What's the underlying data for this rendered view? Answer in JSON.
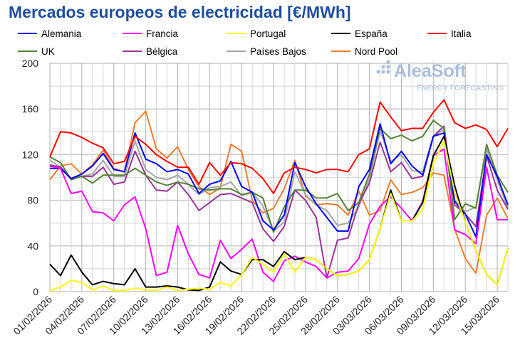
{
  "chart_data": {
    "type": "line",
    "title": "Mercados europeos de electricidad [€/MWh]",
    "xlabel": "",
    "ylabel": "",
    "ylim": [
      0,
      200
    ],
    "yticks": [
      0,
      40,
      80,
      120,
      160,
      200
    ],
    "grid": true,
    "legend": "top",
    "x_tick_labels": [
      "01/02/2026",
      "04/02/2026",
      "07/02/2026",
      "10/02/2026",
      "13/02/2026",
      "16/02/2026",
      "19/02/2026",
      "22/02/2026",
      "25/02/2026",
      "28/02/2026",
      "03/03/2026",
      "06/03/2026",
      "09/03/2026",
      "12/03/2026",
      "15/03/2026"
    ],
    "x_start": "01/02/2026",
    "x_end": "16/03/2026",
    "series": [
      {
        "name": "Alemania",
        "color": "#0000ff",
        "values": [
          108,
          108,
          99,
          103,
          110,
          121,
          107,
          105,
          139,
          116,
          112,
          105,
          107,
          103,
          86,
          94,
          97,
          114,
          92,
          87,
          62,
          54,
          67,
          113,
          92,
          77,
          65,
          53,
          53,
          92,
          107,
          147,
          112,
          123,
          110,
          102,
          136,
          139,
          79,
          68,
          48,
          120,
          101,
          76
        ]
      },
      {
        "name": "Francia",
        "color": "#ff00ff",
        "values": [
          110,
          108,
          86,
          88,
          70,
          69,
          62,
          76,
          83,
          55,
          14,
          17,
          58,
          33,
          15,
          12,
          45,
          29,
          37,
          46,
          17,
          9,
          27,
          31,
          26,
          22,
          12,
          17,
          18,
          29,
          59,
          75,
          83,
          73,
          62,
          79,
          119,
          125,
          54,
          50,
          42,
          109,
          63,
          63
        ]
      },
      {
        "name": "Portugal",
        "color": "#ffff00",
        "values": [
          1,
          4,
          10,
          8,
          1.5,
          5,
          1,
          1,
          3,
          1.5,
          1,
          4,
          1,
          2,
          3,
          2,
          8,
          5,
          15,
          30,
          24,
          17,
          33,
          17,
          30,
          28,
          20,
          14,
          15,
          18,
          28,
          55,
          86,
          62,
          62,
          72,
          112,
          132,
          87,
          61,
          36,
          15,
          6,
          38
        ]
      },
      {
        "name": "España",
        "color": "#000000",
        "values": [
          24,
          14,
          32,
          17,
          6,
          9,
          7,
          6,
          20,
          4,
          4,
          5,
          4,
          1.5,
          1,
          4,
          26,
          18,
          15,
          28,
          28,
          22,
          35,
          28,
          30,
          28,
          20,
          14,
          15,
          18,
          28,
          55,
          89,
          62,
          62,
          78,
          119,
          136,
          93,
          61,
          36,
          15,
          6,
          38
        ]
      },
      {
        "name": "Italia",
        "color": "#ff0000",
        "values": [
          118,
          140,
          139,
          135,
          130,
          126,
          112,
          114,
          136,
          129,
          120,
          114,
          109,
          109,
          94,
          113,
          102,
          113,
          112,
          108,
          99,
          86,
          104,
          109,
          107,
          104,
          107,
          107,
          105,
          120,
          125,
          166,
          153,
          141,
          143,
          143,
          157,
          168,
          148,
          143,
          146,
          142,
          127,
          143
        ]
      },
      {
        "name": "UK",
        "color": "#548235",
        "values": [
          118,
          113,
          98,
          101,
          95,
          102,
          102,
          102,
          108,
          102,
          96,
          93,
          96,
          94,
          90,
          89,
          90,
          90,
          85,
          87,
          82,
          52,
          74,
          89,
          89,
          82,
          82,
          86,
          71,
          78,
          103,
          143,
          134,
          137,
          132,
          136,
          150,
          143,
          63,
          77,
          73,
          129,
          102,
          87
        ]
      },
      {
        "name": "Bélgica",
        "color": "#993399",
        "values": [
          111,
          109,
          99,
          101,
          101,
          109,
          94,
          96,
          123,
          102,
          89,
          88,
          96,
          85,
          71,
          78,
          85,
          86,
          82,
          78,
          55,
          44,
          57,
          89,
          80,
          65,
          12,
          45,
          47,
          77,
          95,
          131,
          105,
          113,
          99,
          101,
          136,
          145,
          76,
          68,
          57,
          119,
          89,
          72
        ]
      },
      {
        "name": "Países Bajos",
        "color": "#a6a6a6",
        "values": [
          115,
          109,
          98,
          101,
          103,
          115,
          101,
          101,
          132,
          107,
          100,
          98,
          102,
          94,
          85,
          91,
          92,
          96,
          84,
          87,
          75,
          53,
          61,
          105,
          85,
          76,
          71,
          58,
          60,
          74,
          99,
          141,
          114,
          120,
          106,
          105,
          136,
          142,
          80,
          70,
          74,
          125,
          98,
          73
        ]
      },
      {
        "name": "Nord Pool",
        "color": "#ed7d31",
        "values": [
          98,
          110,
          112,
          103,
          111,
          124,
          108,
          105,
          148,
          158,
          125,
          117,
          127,
          107,
          92,
          85,
          91,
          129,
          123,
          80,
          69,
          73,
          90,
          115,
          84,
          76,
          77,
          76,
          67,
          88,
          67,
          71,
          98,
          85,
          87,
          91,
          104,
          102,
          55,
          29,
          16,
          67,
          82,
          64
        ]
      }
    ]
  },
  "watermark": {
    "brand": "AleaSoft",
    "tagline": "ENERGY FORECASTING",
    "color": "#9db3d6"
  },
  "title_color": "#1f4e9c"
}
